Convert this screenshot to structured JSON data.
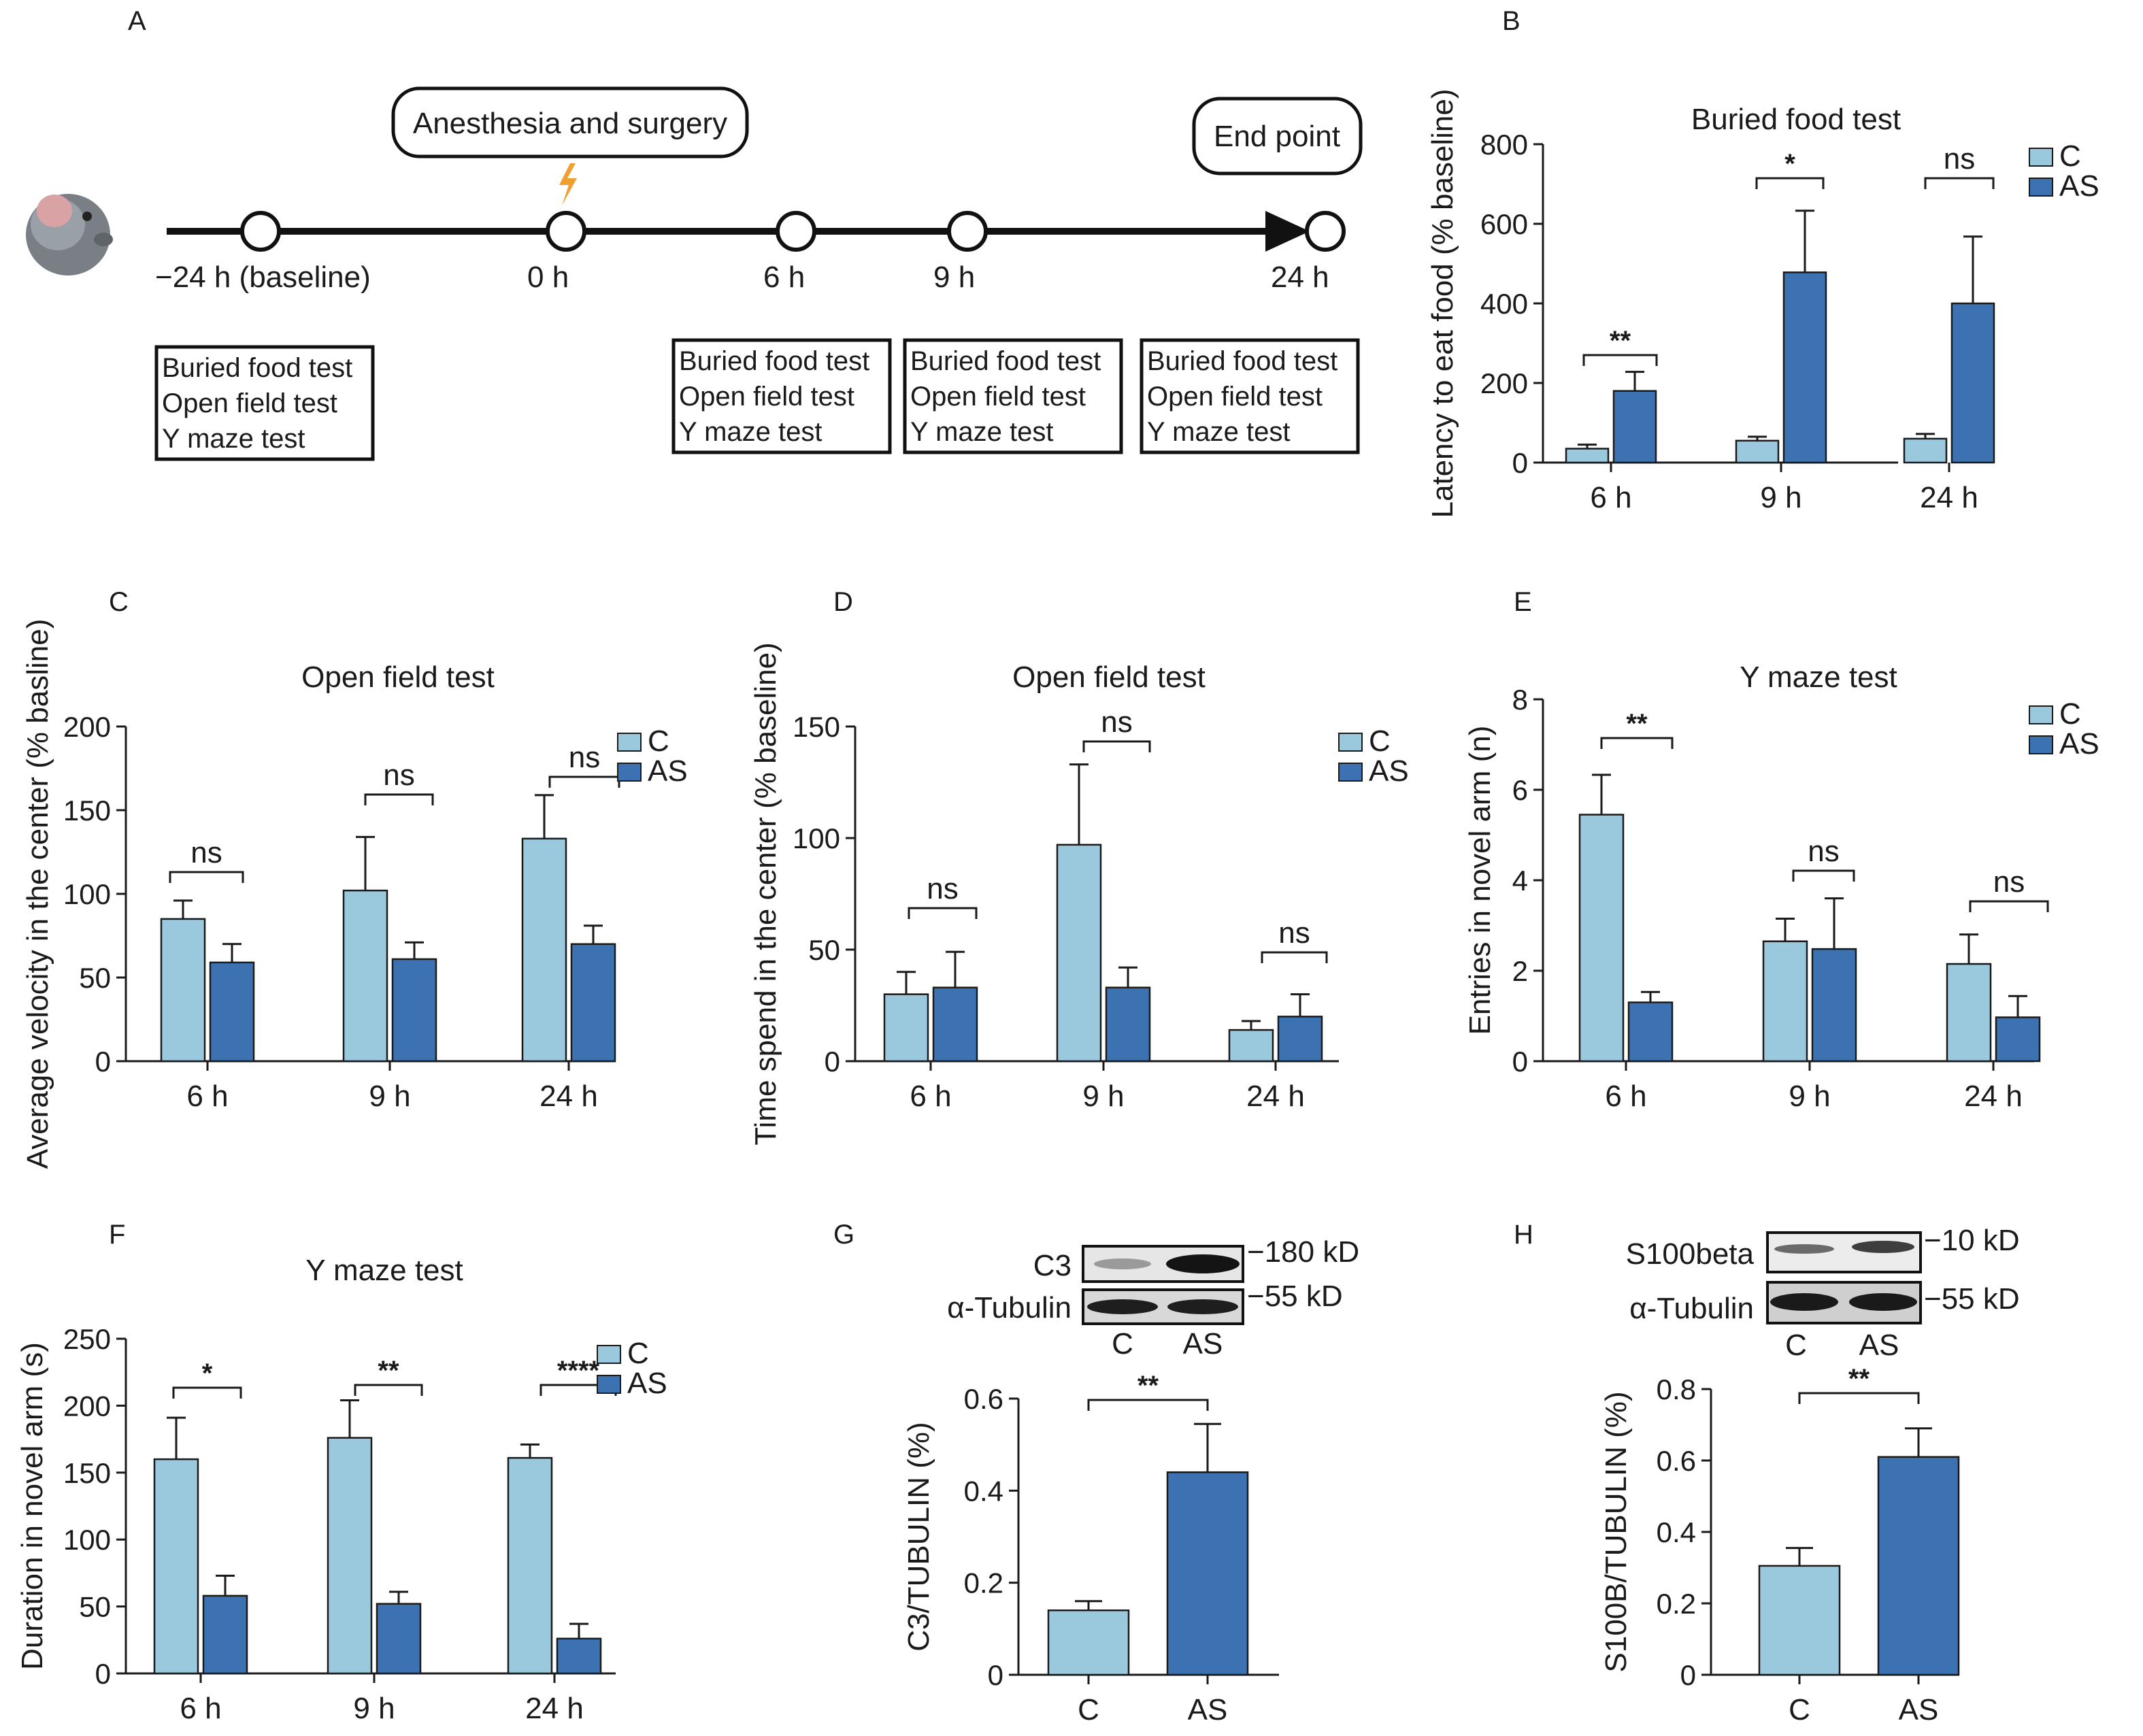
{
  "colors": {
    "C": "#9ac8dc",
    "AS": "#3c72b2",
    "outline": "#1a1a1a",
    "bolt": "#f0a030"
  },
  "panel_letters": [
    "A",
    "B",
    "C",
    "D",
    "E",
    "F",
    "G",
    "H"
  ],
  "timeline": {
    "points": [
      "−24 h (baseline)",
      "0 h",
      "6 h",
      "9 h",
      "24 h"
    ],
    "surgery_label": "Anesthesia and surgery",
    "end_label": "End point",
    "test_boxes": [
      [
        "Buried food test",
        "Open field test",
        "Y maze test"
      ],
      [
        "Buried food test",
        "Open field test",
        "Y maze test"
      ],
      [
        "Buried food test",
        "Open field test",
        "Y maze test"
      ],
      [
        "Buried food test",
        "Open field test",
        "Y maze test"
      ]
    ]
  },
  "chart_data": [
    {
      "panel": "B",
      "type": "bar",
      "title": "Buried food test",
      "ylabel": "Latency to eat food (% baseline)",
      "ylim": [
        0,
        800
      ],
      "yticks": [
        0,
        200,
        400,
        600,
        800
      ],
      "categories": [
        "6 h",
        "9 h",
        "24 h"
      ],
      "legend": [
        "C",
        "AS"
      ],
      "series": [
        {
          "name": "C",
          "values": [
            35,
            55,
            60
          ],
          "errors": [
            10,
            10,
            12
          ]
        },
        {
          "name": "AS",
          "values": [
            180,
            478,
            400
          ],
          "errors": [
            48,
            155,
            168
          ]
        }
      ],
      "significance": [
        "**",
        "*",
        "ns"
      ]
    },
    {
      "panel": "C",
      "type": "bar",
      "title": "Open field test",
      "ylabel": "Average velocity  in the center (% basline)",
      "ylim": [
        0,
        200
      ],
      "yticks": [
        0,
        50,
        100,
        150,
        200
      ],
      "categories": [
        "6 h",
        "9 h",
        "24 h"
      ],
      "legend": [
        "C",
        "AS"
      ],
      "series": [
        {
          "name": "C",
          "values": [
            85,
            102,
            133
          ],
          "errors": [
            11,
            32,
            26
          ]
        },
        {
          "name": "AS",
          "values": [
            59,
            61,
            70
          ],
          "errors": [
            11,
            10,
            11
          ]
        }
      ],
      "significance": [
        "ns",
        "ns",
        "ns"
      ]
    },
    {
      "panel": "D",
      "type": "bar",
      "title": "Open field test",
      "ylabel": "Time spend in the center (% baseline)",
      "ylim": [
        0,
        150
      ],
      "yticks": [
        0,
        50,
        100,
        150
      ],
      "categories": [
        "6 h",
        "9 h",
        "24 h"
      ],
      "legend": [
        "C",
        "AS"
      ],
      "series": [
        {
          "name": "C",
          "values": [
            30,
            97,
            14
          ],
          "errors": [
            10,
            36,
            4
          ]
        },
        {
          "name": "AS",
          "values": [
            33,
            33,
            20
          ],
          "errors": [
            16,
            9,
            10
          ]
        }
      ],
      "significance": [
        "ns",
        "ns",
        "ns"
      ]
    },
    {
      "panel": "E",
      "type": "bar",
      "title": "Y maze test",
      "ylabel": "Entries in novel arm (n)",
      "ylim": [
        0,
        8
      ],
      "yticks": [
        0,
        2,
        4,
        6,
        8
      ],
      "categories": [
        "6 h",
        "9 h",
        "24 h"
      ],
      "legend": [
        "C",
        "AS"
      ],
      "series": [
        {
          "name": "C",
          "values": [
            5.45,
            2.65,
            2.15
          ],
          "errors": [
            0.88,
            0.5,
            0.65
          ]
        },
        {
          "name": "AS",
          "values": [
            1.3,
            2.48,
            0.97
          ],
          "errors": [
            0.23,
            1.12,
            0.47
          ]
        }
      ],
      "significance": [
        "**",
        "ns",
        "ns"
      ]
    },
    {
      "panel": "F",
      "type": "bar",
      "title": "Y maze test",
      "ylabel": "Duration in novel arm (s)",
      "ylim": [
        0,
        250
      ],
      "yticks": [
        0,
        50,
        100,
        150,
        200,
        250
      ],
      "categories": [
        "6 h",
        "9 h",
        "24 h"
      ],
      "legend": [
        "C",
        "AS"
      ],
      "series": [
        {
          "name": "C",
          "values": [
            160,
            176,
            161
          ],
          "errors": [
            31,
            28,
            10
          ]
        },
        {
          "name": "AS",
          "values": [
            58,
            52,
            26
          ],
          "errors": [
            15,
            9,
            11
          ]
        }
      ],
      "significance": [
        "*",
        "**",
        "****"
      ]
    },
    {
      "panel": "G",
      "type": "bar",
      "title": "",
      "ylabel": "C3/TUBULIN (%)",
      "ylim": [
        0,
        0.6
      ],
      "yticks": [
        0,
        0.2,
        0.4,
        0.6
      ],
      "categories": [
        "C",
        "AS"
      ],
      "series": [
        {
          "name": "",
          "values": [
            0.14,
            0.44
          ],
          "errors": [
            0.02,
            0.105
          ]
        }
      ],
      "significance": [
        "**"
      ],
      "blot": {
        "bands": [
          "C3",
          "α-Tubulin"
        ],
        "sizes": [
          "−180 kD",
          "−55 kD"
        ],
        "lanes": [
          "C",
          "AS"
        ]
      }
    },
    {
      "panel": "H",
      "type": "bar",
      "title": "",
      "ylabel": "S100B/TUBULIN (%)",
      "ylim": [
        0,
        0.8
      ],
      "yticks": [
        0,
        0.2,
        0.4,
        0.6,
        0.8
      ],
      "categories": [
        "C",
        "AS"
      ],
      "series": [
        {
          "name": "",
          "values": [
            0.305,
            0.61
          ],
          "errors": [
            0.05,
            0.08
          ]
        }
      ],
      "significance": [
        "**"
      ],
      "blot": {
        "bands": [
          "S100beta",
          "α-Tubulin"
        ],
        "sizes": [
          "−10 kD",
          "−55 kD"
        ],
        "lanes": [
          "C",
          "AS"
        ]
      }
    }
  ]
}
